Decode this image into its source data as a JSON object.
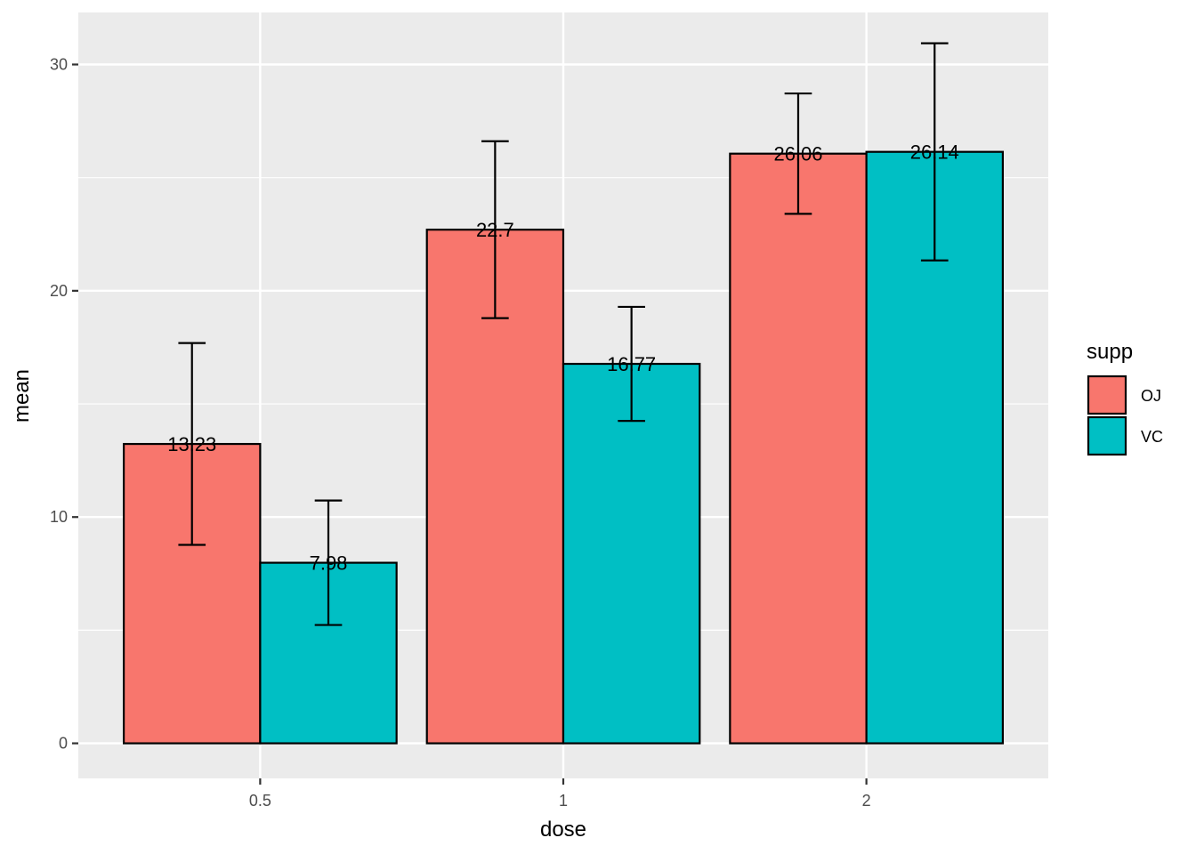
{
  "chart_data": {
    "type": "bar",
    "xlabel": "dose",
    "ylabel": "mean",
    "categories": [
      "0.5",
      "1",
      "2"
    ],
    "ylim": [
      -1.55,
      32.3
    ],
    "yticks": [
      0,
      10,
      20,
      30
    ],
    "grid": true,
    "legend": {
      "title": "supp",
      "position": "right"
    },
    "series": [
      {
        "name": "OJ",
        "color": "#F8766D",
        "values": [
          13.23,
          22.7,
          26.06
        ],
        "sd": [
          4.46,
          3.91,
          2.66
        ],
        "labels": [
          "13.23",
          "22.7",
          "26.06"
        ]
      },
      {
        "name": "VC",
        "color": "#00BFC4",
        "values": [
          7.98,
          16.77,
          26.14
        ],
        "sd": [
          2.75,
          2.52,
          4.8
        ],
        "labels": [
          "7.98",
          "16.77",
          "26.14"
        ]
      }
    ]
  }
}
